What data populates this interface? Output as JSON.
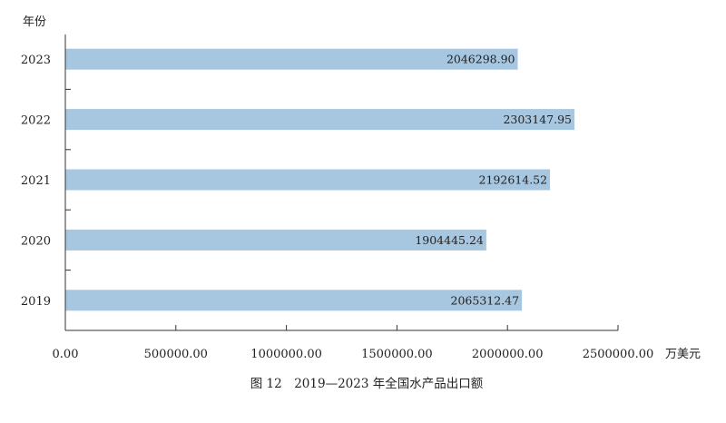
{
  "chart_data": {
    "type": "bar",
    "orientation": "horizontal",
    "title": "图 12　2019—2023 年全国水产品出口额",
    "ylabel": "年份",
    "xlabel": "万美元",
    "categories": [
      "2023",
      "2022",
      "2021",
      "2020",
      "2019"
    ],
    "values": [
      2046298.9,
      2303147.95,
      2192614.52,
      1904445.24,
      2065312.47
    ],
    "value_labels": [
      "2046298.90",
      "2303147.95",
      "2192614.52",
      "1904445.24",
      "2065312.47"
    ],
    "xlim": [
      0,
      2500000
    ],
    "x_ticks": [
      0,
      500000,
      1000000,
      1500000,
      2000000,
      2500000
    ],
    "x_tick_labels": [
      "0.00",
      "500000.00",
      "1000000.00",
      "1500000.00",
      "2000000.00",
      "2500000.00"
    ],
    "grid": false,
    "legend": "none",
    "bar_color": "#a7c6e0"
  }
}
